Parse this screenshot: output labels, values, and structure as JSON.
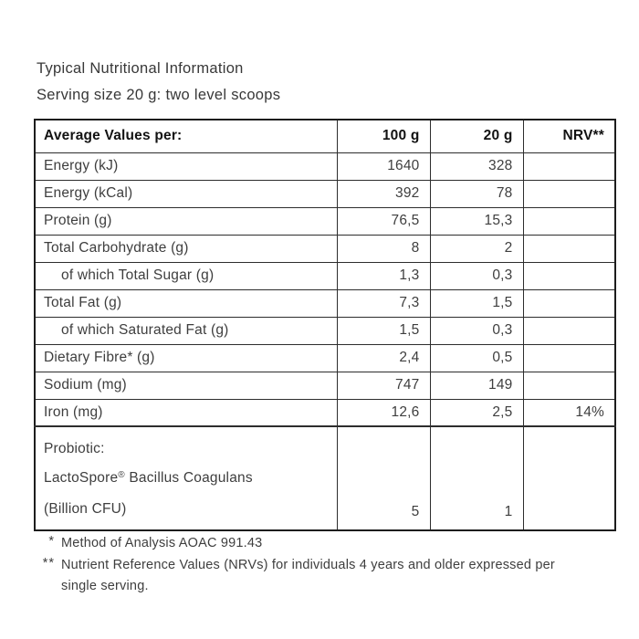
{
  "page": {
    "title": "Typical Nutritional Information",
    "subtitle": "Serving size 20 g: two level scoops"
  },
  "table": {
    "columns": [
      "Average Values per:",
      "100 g",
      "20 g",
      "NRV**"
    ],
    "rows": [
      {
        "label": "Energy (kJ)",
        "per100": "1640",
        "per20": "328",
        "nrv": "",
        "indent": false
      },
      {
        "label": "Energy (kCal)",
        "per100": "392",
        "per20": "78",
        "nrv": "",
        "indent": false
      },
      {
        "label": "Protein (g)",
        "per100": "76,5",
        "per20": "15,3",
        "nrv": "",
        "indent": false
      },
      {
        "label": "Total Carbohydrate (g)",
        "per100": "8",
        "per20": "2",
        "nrv": "",
        "indent": false
      },
      {
        "label": "of which Total Sugar (g)",
        "per100": "1,3",
        "per20": "0,3",
        "nrv": "",
        "indent": true
      },
      {
        "label": "Total Fat (g)",
        "per100": "7,3",
        "per20": "1,5",
        "nrv": "",
        "indent": false
      },
      {
        "label": "of which Saturated Fat (g)",
        "per100": "1,5",
        "per20": "0,3",
        "nrv": "",
        "indent": true
      },
      {
        "label": "Dietary Fibre* (g)",
        "per100": "2,4",
        "per20": "0,5",
        "nrv": "",
        "indent": false
      },
      {
        "label": "Sodium (mg)",
        "per100": "747",
        "per20": "149",
        "nrv": "",
        "indent": false
      },
      {
        "label": "Iron (mg)",
        "per100": "12,6",
        "per20": "2,5",
        "nrv": "14%",
        "indent": false
      }
    ],
    "probiotic": {
      "line1": "Probiotic:",
      "brand": "LactoSpore",
      "registered": "®",
      "brand_rest": " Bacillus Coagulans",
      "line3": "(Billion CFU)",
      "per100": "5",
      "per20": "1",
      "nrv": ""
    }
  },
  "footnotes": [
    {
      "marker": "*",
      "text": "Method of Analysis AOAC 991.43"
    },
    {
      "marker": "**",
      "text": "Nutrient Reference Values (NRVs) for individuals 4 years and older expressed per single serving."
    }
  ]
}
